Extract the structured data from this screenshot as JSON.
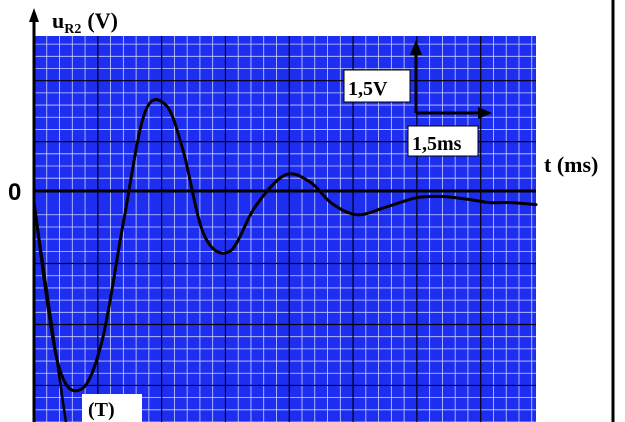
{
  "chart_data": {
    "type": "line",
    "title": "",
    "xlabel": "t (ms)",
    "ylabel_main": "u",
    "ylabel_sub": "R2",
    "ylabel_unit": "(V)",
    "origin_label": "0",
    "tangent_label": "(T)",
    "grid": true,
    "legend": "none",
    "scale": {
      "voltage_label": "1,5V",
      "time_label": "1,5ms",
      "voltage_per_division": 1.5,
      "time_per_division": 1.5
    },
    "xlim": [
      0,
      11.8
    ],
    "ylim": [
      -5.4,
      4.1
    ],
    "series": [
      {
        "name": "",
        "x": [
          0,
          0.55,
          1.1,
          1.6,
          2.1,
          2.6,
          3.1,
          3.5,
          4.0,
          4.6,
          5.2,
          5.9,
          6.5,
          7.0,
          7.6,
          8.3,
          9.0,
          9.6,
          10.2,
          10.7,
          11.2,
          11.8
        ],
        "y": [
          0,
          -3.9,
          -4.6,
          -3.4,
          -0.5,
          2.2,
          2.4,
          1.3,
          -0.8,
          -1.2,
          -0.1,
          0.68,
          0.5,
          -0.02,
          -0.3,
          -0.1,
          0.12,
          0.15,
          0.08,
          0.0,
          0.0,
          -0.05
        ]
      }
    ],
    "tangent": {
      "x": [
        0,
        0.75
      ],
      "y": [
        0,
        -5.4
      ]
    },
    "colors": {
      "grid_background": "#1e2ef0",
      "grid_line_minor": "#c9d1ff",
      "grid_line_major": "#000000",
      "curve": "#000000"
    }
  }
}
